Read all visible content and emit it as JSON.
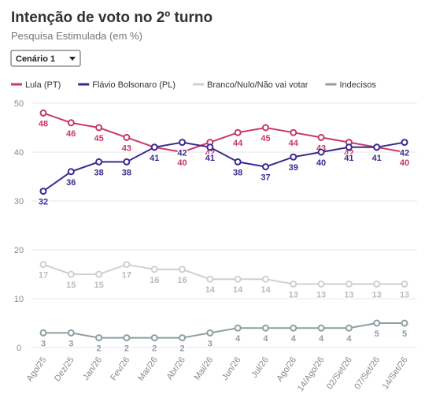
{
  "controls": {
    "dropdown": "Cenário 1"
  },
  "chart_data": {
    "type": "line",
    "title": "Intenção de voto no 2º turno",
    "subtitle": "Pesquisa Estimulada (em %)",
    "categories": [
      "Ago/25",
      "Dez/25",
      "Jan/26",
      "Fev/26",
      "Mar/26",
      "Abr/26",
      "Mai/26",
      "Jun/26",
      "Jul/26",
      "Ago/26",
      "14/Ago/26",
      "02/Set/26",
      "07/Set/26",
      "14/Set/26"
    ],
    "series": [
      {
        "name": "Lula (PT)",
        "color": "#c8376b",
        "values": [
          48,
          46,
          45,
          43,
          41,
          40,
          42,
          44,
          45,
          44,
          43,
          42,
          41,
          40
        ]
      },
      {
        "name": "Flávio Bolsonaro (PL)",
        "color": "#3a2a8f",
        "values": [
          32,
          36,
          38,
          38,
          41,
          42,
          41,
          38,
          37,
          39,
          40,
          41,
          41,
          42
        ]
      },
      {
        "name": "Branco/Nulo/Não vai votar",
        "color": "#d0d0d0",
        "values": [
          17,
          15,
          15,
          17,
          16,
          16,
          14,
          14,
          14,
          13,
          13,
          13,
          13,
          13
        ]
      },
      {
        "name": "Indecisos",
        "color": "#8e9ea2",
        "values": [
          3,
          3,
          2,
          2,
          2,
          2,
          3,
          4,
          4,
          4,
          4,
          4,
          5,
          5
        ]
      }
    ],
    "ylim": [
      0,
      50
    ],
    "yticks": [
      0,
      10,
      20,
      30,
      40,
      50
    ],
    "grid": true
  }
}
